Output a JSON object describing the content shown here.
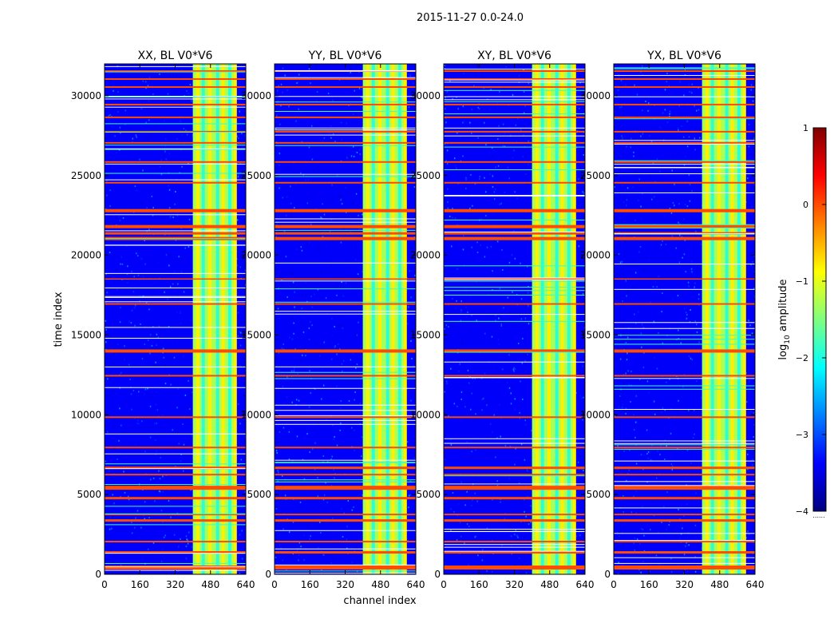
{
  "figure": {
    "suptitle": "2015-11-27 0.0-24.0",
    "xlabel": "channel index",
    "ylabel": "time index"
  },
  "chart_data": {
    "type": "heatmap",
    "subplots": [
      {
        "title": "XX, BL V0*V6"
      },
      {
        "title": "YY, BL V0*V6"
      },
      {
        "title": "XY, BL V0*V6"
      },
      {
        "title": "YX, BL V0*V6"
      }
    ],
    "x_ticks": [
      0,
      160,
      320,
      480,
      640
    ],
    "y_ticks": [
      0,
      5000,
      10000,
      15000,
      20000,
      25000,
      30000
    ],
    "xlim": [
      0,
      640
    ],
    "ylim": [
      0,
      32000
    ],
    "colorbar": {
      "label": "log",
      "label_sub": "10",
      "label_rest": " amplitude",
      "ticks": [
        1,
        0,
        -1,
        -2,
        -3,
        -4
      ],
      "tick_labels": [
        "1",
        "0",
        "−1",
        "−2",
        "−3",
        "−4"
      ],
      "range": [
        -4,
        1
      ],
      "colormap": "jet",
      "under_marker": "......"
    },
    "flagged_time_bands": [
      [
        300,
        550
      ],
      [
        1300,
        1450
      ],
      [
        2000,
        2100
      ],
      [
        3300,
        3450
      ],
      [
        3700,
        3800
      ],
      [
        4700,
        4850
      ],
      [
        5300,
        5550
      ],
      [
        6200,
        6300
      ],
      [
        6600,
        6750
      ],
      [
        7900,
        8000
      ],
      [
        9800,
        9900
      ],
      [
        12400,
        12500
      ],
      [
        13900,
        14100
      ],
      [
        16900,
        17000
      ],
      [
        18500,
        18550
      ],
      [
        20950,
        21150
      ],
      [
        21300,
        21450
      ],
      [
        21700,
        21900
      ],
      [
        22700,
        22900
      ],
      [
        24500,
        24600
      ],
      [
        25800,
        25900
      ],
      [
        27000,
        27100
      ],
      [
        27700,
        27800
      ],
      [
        28600,
        28700
      ],
      [
        29400,
        29500
      ],
      [
        30500,
        30600
      ],
      [
        31000,
        31100
      ],
      [
        31500,
        31600
      ]
    ],
    "rfi_channel_range": [
      400,
      590
    ],
    "background_level": -3.4,
    "rfi_level": -1.3,
    "flag_level": 0.0
  },
  "colors": {
    "axis": "#000000",
    "background": "#ffffff"
  }
}
